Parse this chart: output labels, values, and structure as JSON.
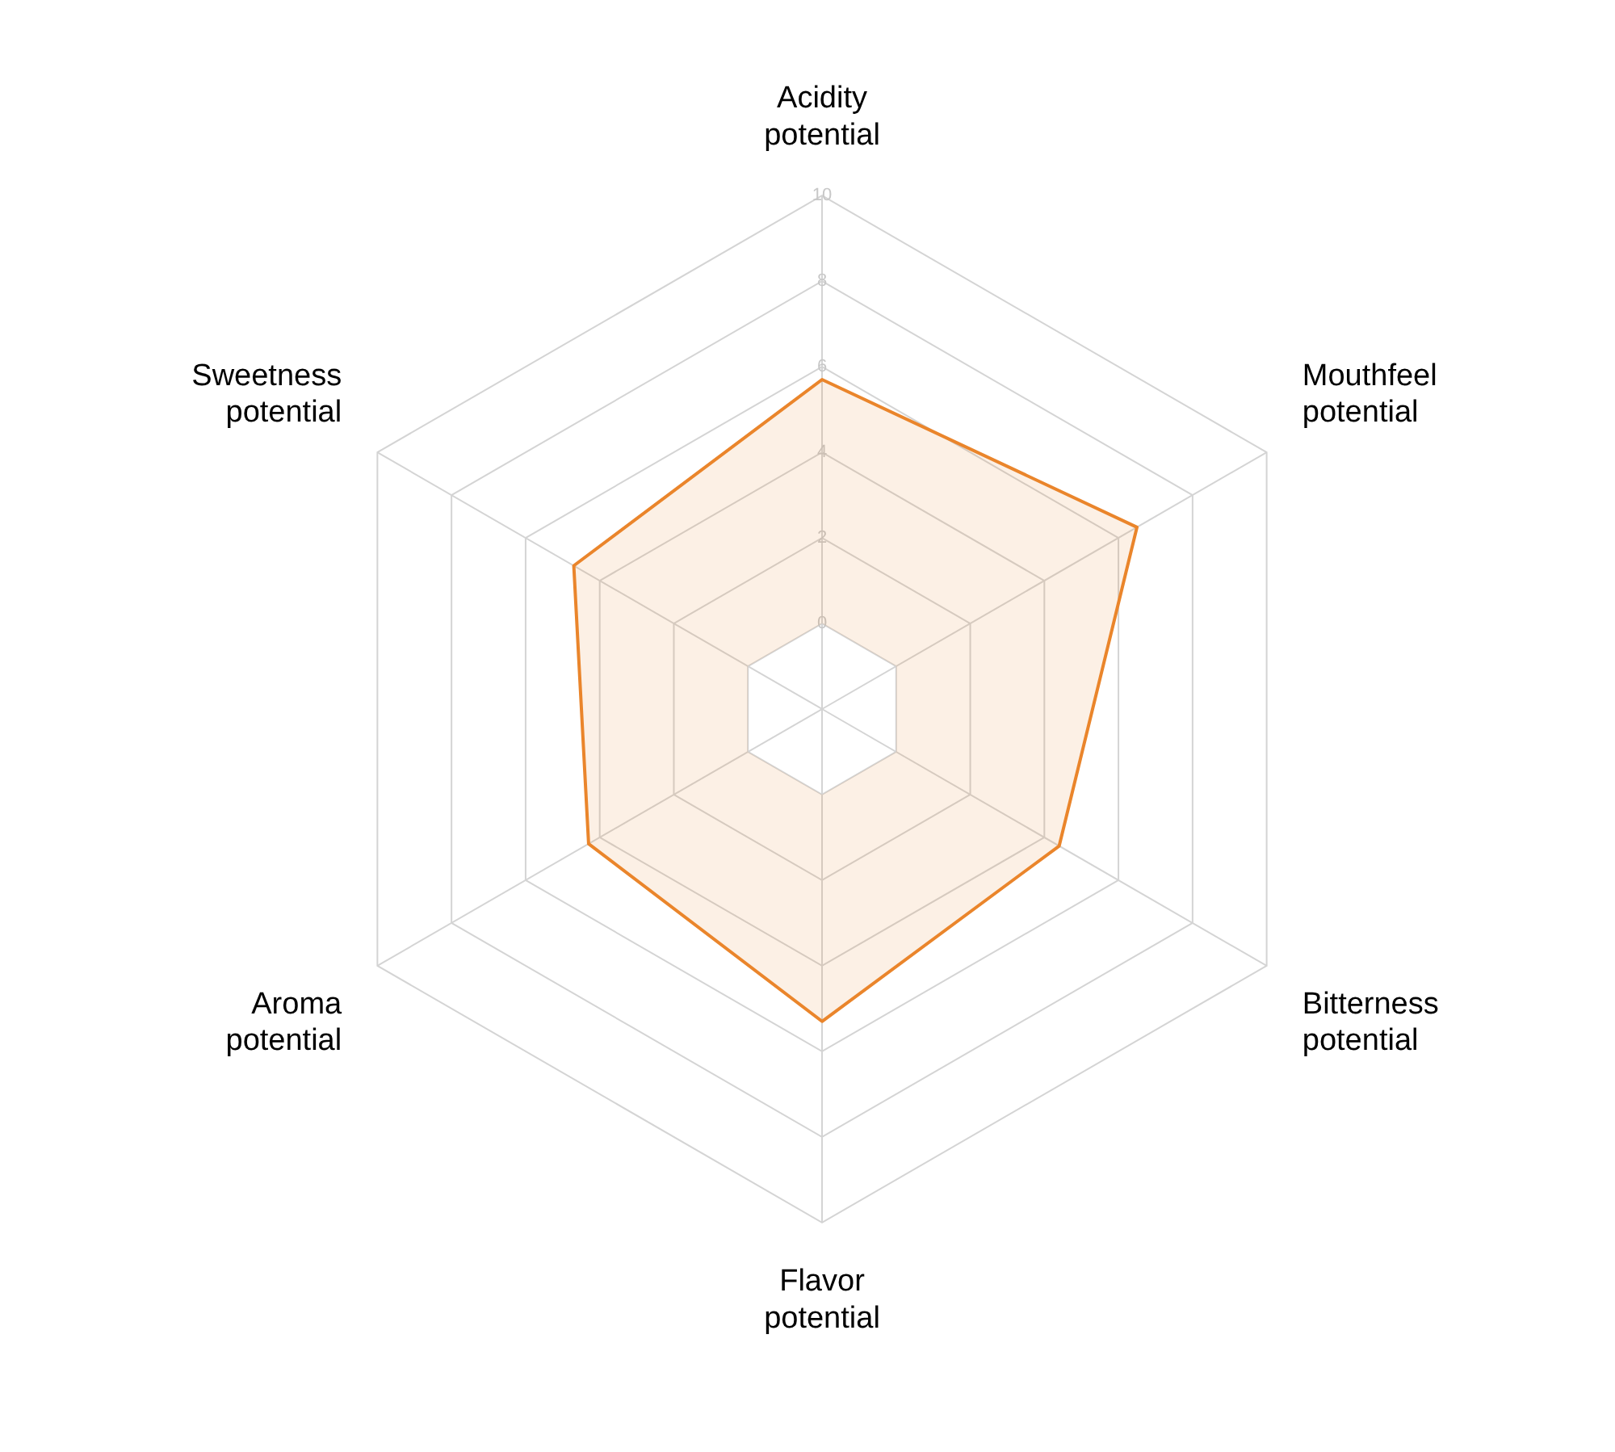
{
  "chart_data": {
    "type": "radar",
    "categories": [
      "Acidity potential",
      "Mouthfeel potential",
      "Bitterness potential",
      "Flavor potential",
      "Aroma potential",
      "Sweetness potential"
    ],
    "series": [
      {
        "color": "#ea852b",
        "values": [
          5.7,
          6.5,
          4.4,
          5.3,
          4.3,
          4.7
        ]
      }
    ],
    "ylim": [
      -2,
      10
    ],
    "yticks": [
      0,
      2,
      4,
      6,
      8,
      10
    ],
    "grid": true,
    "legend": false,
    "marker": "none",
    "line_style": "solid"
  }
}
